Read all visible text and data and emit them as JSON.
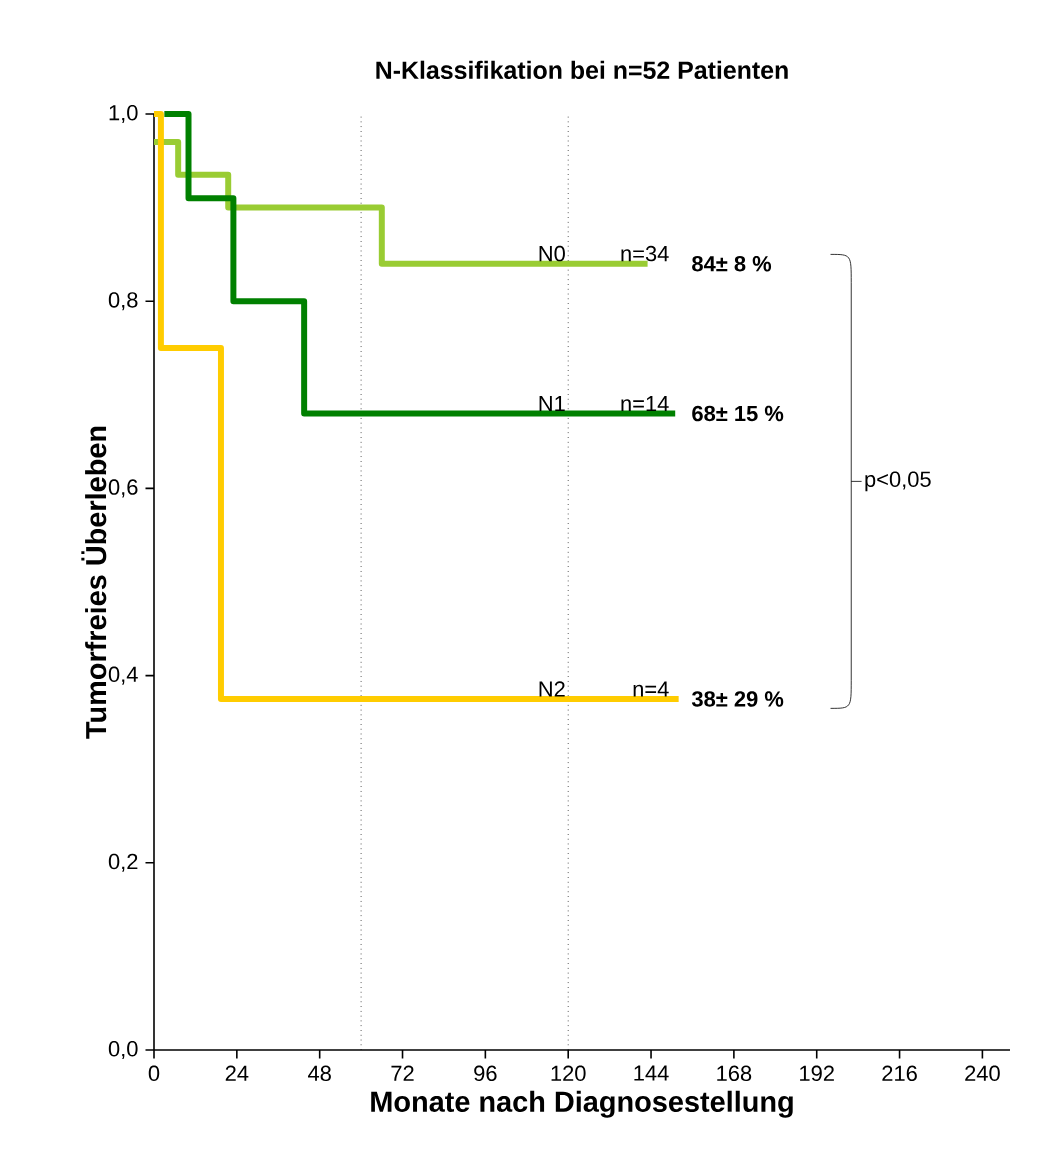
{
  "chart_data": {
    "type": "step",
    "title": "N-Klassifikation bei n=52 Patienten",
    "xlabel": "Monate nach Diagnosestellung",
    "ylabel": "Tumorfreies Überleben",
    "xlim": [
      0,
      248
    ],
    "ylim": [
      0,
      1
    ],
    "xticks": [
      0,
      24,
      48,
      72,
      96,
      120,
      144,
      168,
      192,
      216,
      240
    ],
    "yticks": [
      {
        "value": 0,
        "label": "0,0"
      },
      {
        "value": 0.2,
        "label": "0,2"
      },
      {
        "value": 0.4,
        "label": "0,4"
      },
      {
        "value": 0.6,
        "label": "0,6"
      },
      {
        "value": 0.8,
        "label": "0,8"
      },
      {
        "value": 1,
        "label": "1,0"
      }
    ],
    "grid": false,
    "line_style": "solid",
    "marker": "none",
    "series": [
      {
        "name": "N0",
        "color": "#99cc33",
        "x": [
          0,
          7,
          21.5,
          66,
          143
        ],
        "values": [
          0.97,
          0.935,
          0.9,
          0.84,
          0.84
        ]
      },
      {
        "name": "N1",
        "color": "#008000",
        "x": [
          3,
          10,
          23,
          43.5,
          151
        ],
        "values": [
          1,
          0.91,
          0.8,
          0.68,
          0.68
        ]
      },
      {
        "name": "N2",
        "color": "#ffcc00",
        "x": [
          0,
          2,
          19.4,
          152
        ],
        "values": [
          1,
          0.75,
          0.375,
          0.375
        ]
      }
    ],
    "ref_lines": [
      {
        "axis": "x",
        "value": 60,
        "line_style": "dotted",
        "color": "#000000"
      },
      {
        "axis": "x",
        "value": 120,
        "line_style": "dotted",
        "color": "#000000"
      }
    ],
    "annotations": [
      "n=34",
      "84± 8 %",
      "n=14",
      "68± 15 %",
      "n=4",
      "38± 29 %",
      "p<0,05"
    ]
  }
}
